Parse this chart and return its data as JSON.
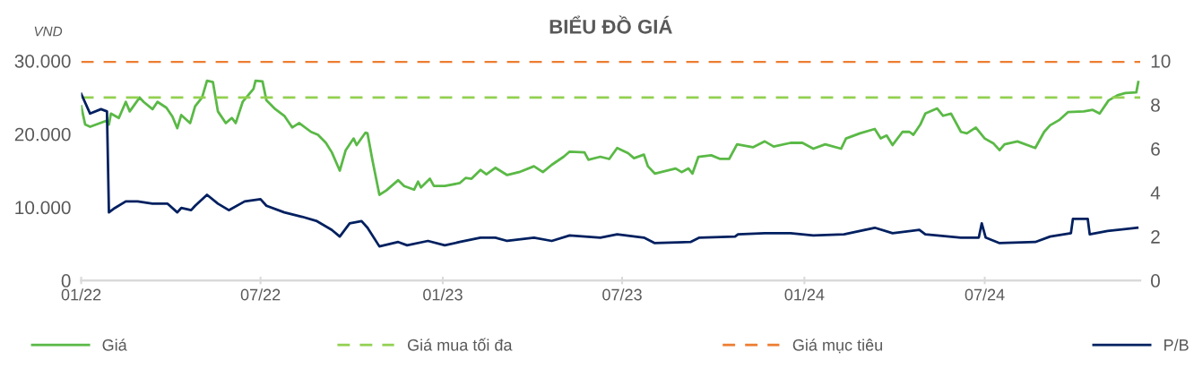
{
  "chart_data": {
    "type": "line",
    "title": "BIỂU ĐỒ GIÁ",
    "ylabel": "VND",
    "xlim": [
      "2022-01-01",
      "2024-12-05"
    ],
    "xticks": [
      {
        "value": "2022-01-01",
        "label": "01/22"
      },
      {
        "value": "2022-07-01",
        "label": "07/22"
      },
      {
        "value": "2023-01-01",
        "label": "01/23"
      },
      {
        "value": "2023-07-01",
        "label": "07/23"
      },
      {
        "value": "2024-01-01",
        "label": "01/24"
      },
      {
        "value": "2024-07-01",
        "label": "07/24"
      }
    ],
    "ylim": [
      0,
      30000
    ],
    "yticks": [
      0,
      {
        "value": 10000,
        "label": "10.000"
      },
      {
        "value": 20000,
        "label": "20.000"
      },
      {
        "value": 30000,
        "label": "30.000"
      }
    ],
    "y2lim": [
      0,
      10
    ],
    "y2ticks": [
      0,
      2,
      4,
      6,
      8,
      10
    ],
    "grid": false,
    "legend": "bottom",
    "line_style": "solid",
    "marker": "none",
    "ref_lines": [
      {
        "axis": "y",
        "value": 25000,
        "label": "Giá mua tối đa",
        "color": "#92d050",
        "line_style": "dashed"
      },
      {
        "axis": "y",
        "value": 29900,
        "label": "Giá mục tiêu",
        "color": "#ed7d31",
        "line_style": "dashed"
      }
    ],
    "series": [
      {
        "name": "Giá",
        "color": "#5ab946",
        "x": [
          "2022-01-01",
          "2022-01-05",
          "2022-01-10",
          "2022-01-26",
          "2022-01-29",
          "2022-01-31",
          "2022-02-08",
          "2022-02-15",
          "2022-02-19",
          "2022-03-01",
          "2022-03-05",
          "2022-03-14",
          "2022-03-19",
          "2022-03-28",
          "2022-04-03",
          "2022-04-08",
          "2022-04-12",
          "2022-04-21",
          "2022-04-26",
          "2022-05-03",
          "2022-05-08",
          "2022-05-14",
          "2022-05-19",
          "2022-05-27",
          "2022-06-02",
          "2022-06-06",
          "2022-06-13",
          "2022-06-24",
          "2022-06-26",
          "2022-07-03",
          "2022-07-07",
          "2022-07-16",
          "2022-07-25",
          "2022-08-02",
          "2022-08-09",
          "2022-08-21",
          "2022-08-28",
          "2022-09-05",
          "2022-09-11",
          "2022-09-19",
          "2022-09-25",
          "2022-10-03",
          "2022-10-06",
          "2022-10-15",
          "2022-10-17",
          "2022-10-22",
          "2022-10-29",
          "2022-11-05",
          "2022-11-17",
          "2022-11-23",
          "2022-12-03",
          "2022-12-07",
          "2022-12-10",
          "2022-12-19",
          "2022-12-23",
          "2023-01-03",
          "2023-01-18",
          "2023-01-24",
          "2023-01-30",
          "2023-02-08",
          "2023-02-14",
          "2023-02-23",
          "2023-03-07",
          "2023-03-19",
          "2023-04-03",
          "2023-04-12",
          "2023-04-21",
          "2023-05-03",
          "2023-05-09",
          "2023-05-24",
          "2023-05-28",
          "2023-06-09",
          "2023-06-18",
          "2023-06-26",
          "2023-07-07",
          "2023-07-13",
          "2023-07-23",
          "2023-07-27",
          "2023-08-03",
          "2023-08-24",
          "2023-08-30",
          "2023-09-06",
          "2023-09-10",
          "2023-09-16",
          "2023-09-29",
          "2023-10-08",
          "2023-10-17",
          "2023-10-25",
          "2023-11-10",
          "2023-11-22",
          "2023-12-01",
          "2023-12-18",
          "2023-12-30",
          "2024-01-10",
          "2024-01-22",
          "2024-02-07",
          "2024-02-12",
          "2024-02-26",
          "2024-03-12",
          "2024-03-18",
          "2024-03-24",
          "2024-03-30",
          "2024-04-09",
          "2024-04-16",
          "2024-04-20",
          "2024-04-27",
          "2024-05-02",
          "2024-05-14",
          "2024-05-20",
          "2024-05-28",
          "2024-06-07",
          "2024-06-13",
          "2024-06-22",
          "2024-07-01",
          "2024-07-10",
          "2024-07-16",
          "2024-07-21",
          "2024-08-03",
          "2024-08-21",
          "2024-08-30",
          "2024-09-05",
          "2024-09-14",
          "2024-09-23",
          "2024-10-09",
          "2024-10-18",
          "2024-10-25",
          "2024-11-03",
          "2024-11-12",
          "2024-11-20",
          "2024-12-01",
          "2024-12-03"
        ],
        "values": [
          23800,
          21300,
          21000,
          21800,
          21300,
          22800,
          22200,
          24400,
          23100,
          25000,
          24400,
          23400,
          24400,
          23600,
          22400,
          20800,
          22600,
          21500,
          23800,
          25000,
          27300,
          27100,
          23100,
          21500,
          22200,
          21500,
          24400,
          26200,
          27300,
          27200,
          24600,
          23400,
          22500,
          20900,
          21500,
          20300,
          19900,
          18800,
          17500,
          15000,
          17800,
          19400,
          18500,
          20200,
          20100,
          16400,
          11700,
          12300,
          13700,
          12900,
          12400,
          13500,
          12700,
          13900,
          12900,
          12900,
          13300,
          14000,
          13900,
          15100,
          14500,
          15400,
          14400,
          14800,
          15600,
          14800,
          15800,
          16900,
          17600,
          17500,
          16500,
          16900,
          16600,
          18100,
          17400,
          16700,
          17200,
          15600,
          14600,
          15300,
          14800,
          15300,
          14600,
          16900,
          17100,
          16600,
          16600,
          18600,
          18200,
          19000,
          18300,
          18800,
          18800,
          18000,
          18600,
          18000,
          19400,
          20100,
          20700,
          19400,
          19800,
          18500,
          20300,
          20300,
          19900,
          21300,
          22800,
          23500,
          22500,
          22800,
          20300,
          20100,
          20900,
          19400,
          18700,
          17800,
          18600,
          19000,
          18100,
          20300,
          21200,
          21900,
          23000,
          23100,
          23300,
          22800,
          24600,
          25300,
          25600,
          25700,
          27100
        ]
      },
      {
        "name": "P/B",
        "color": "#002060",
        "axis": "y2",
        "x": [
          "2022-01-01",
          "2022-01-10",
          "2022-01-21",
          "2022-01-27",
          "2022-01-29",
          "2022-02-04",
          "2022-02-15",
          "2022-02-27",
          "2022-03-14",
          "2022-03-29",
          "2022-04-08",
          "2022-04-12",
          "2022-04-22",
          "2022-04-26",
          "2022-05-08",
          "2022-05-19",
          "2022-05-30",
          "2022-06-15",
          "2022-07-01",
          "2022-07-07",
          "2022-07-25",
          "2022-08-12",
          "2022-08-27",
          "2022-09-11",
          "2022-09-19",
          "2022-09-29",
          "2022-10-11",
          "2022-10-17",
          "2022-10-29",
          "2022-11-17",
          "2022-11-26",
          "2022-12-17",
          "2023-01-03",
          "2023-01-18",
          "2023-02-08",
          "2023-02-23",
          "2023-03-07",
          "2023-04-03",
          "2023-04-21",
          "2023-05-09",
          "2023-06-09",
          "2023-06-26",
          "2023-07-23",
          "2023-08-03",
          "2023-09-08",
          "2023-09-17",
          "2023-10-23",
          "2023-10-26",
          "2023-11-22",
          "2023-12-18",
          "2024-01-10",
          "2024-02-10",
          "2024-03-12",
          "2024-03-30",
          "2024-04-26",
          "2024-05-02",
          "2024-06-07",
          "2024-06-25",
          "2024-06-28",
          "2024-07-02",
          "2024-07-16",
          "2024-08-21",
          "2024-09-05",
          "2024-09-26",
          "2024-09-28",
          "2024-10-13",
          "2024-10-15",
          "2024-11-02",
          "2024-12-02"
        ],
        "values": [
          8.5,
          7.6,
          7.8,
          7.7,
          3.1,
          3.3,
          3.6,
          3.6,
          3.5,
          3.5,
          3.1,
          3.3,
          3.2,
          3.4,
          3.9,
          3.5,
          3.2,
          3.6,
          3.7,
          3.4,
          3.1,
          2.9,
          2.7,
          2.3,
          2.0,
          2.6,
          2.7,
          2.4,
          1.55,
          1.75,
          1.6,
          1.8,
          1.6,
          1.75,
          1.95,
          1.95,
          1.8,
          1.95,
          1.8,
          2.05,
          1.95,
          2.1,
          1.95,
          1.7,
          1.75,
          1.95,
          2.0,
          2.1,
          2.15,
          2.15,
          2.05,
          2.1,
          2.4,
          2.15,
          2.3,
          2.1,
          1.95,
          1.95,
          2.6,
          1.95,
          1.7,
          1.75,
          2.0,
          2.15,
          2.8,
          2.8,
          2.1,
          2.25,
          2.4
        ]
      }
    ]
  }
}
